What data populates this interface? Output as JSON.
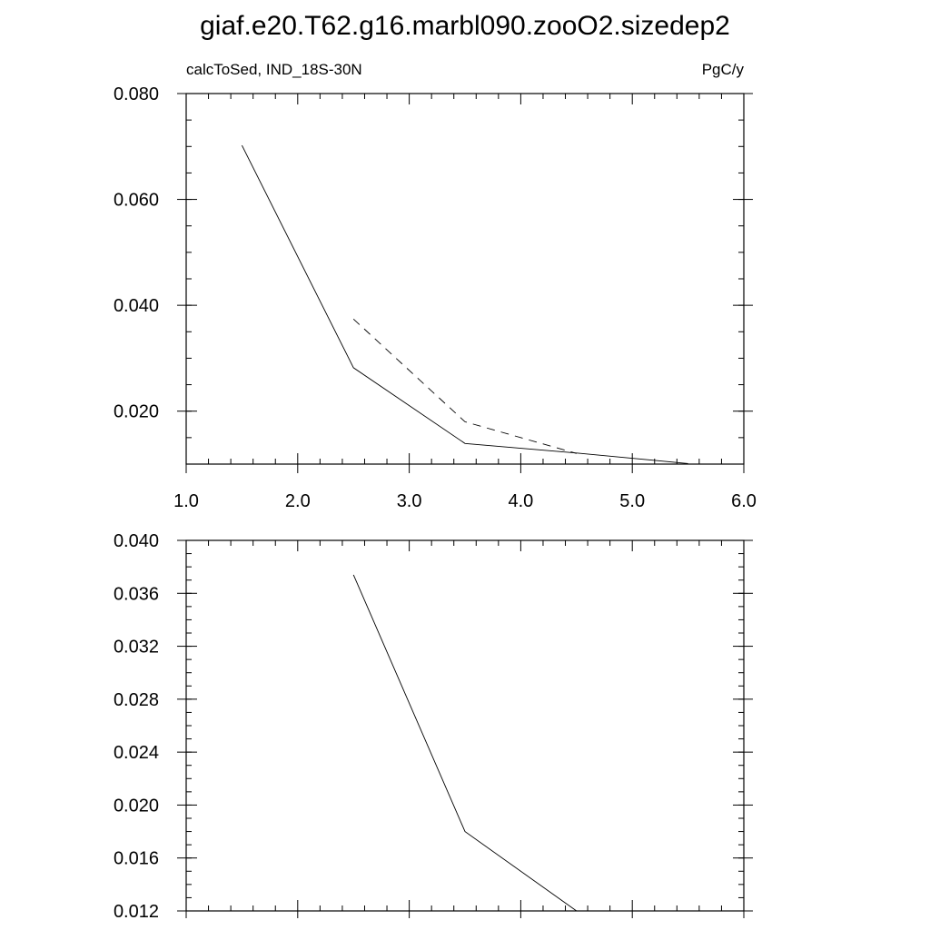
{
  "title": "giaf.e20.T62.g16.marbl090.zooO2.sizedep2",
  "chart_data": [
    {
      "type": "line",
      "left_label": "calcToSed, IND_18S-30N",
      "right_label": "PgC/y",
      "xlim": [
        1.0,
        6.0
      ],
      "ylim": [
        0.01,
        0.08
      ],
      "xticks": [
        "1.0",
        "2.0",
        "3.0",
        "4.0",
        "5.0",
        "6.0"
      ],
      "yticks": [
        "0.020",
        "0.040",
        "0.060",
        "0.080"
      ],
      "grid": false,
      "series": [
        {
          "style": "solid",
          "x": [
            1.5,
            2.5,
            3.5,
            4.5,
            5.5
          ],
          "y": [
            0.0702,
            0.0282,
            0.0139,
            0.0121,
            0.0101
          ]
        },
        {
          "style": "dashed",
          "x": [
            2.5,
            3.5,
            4.5
          ],
          "y": [
            0.0374,
            0.018,
            0.012
          ]
        }
      ]
    },
    {
      "type": "line",
      "xlim": [
        1.0,
        6.0
      ],
      "ylim": [
        0.012,
        0.04
      ],
      "yticks": [
        "0.012",
        "0.016",
        "0.020",
        "0.024",
        "0.028",
        "0.032",
        "0.036",
        "0.040"
      ],
      "grid": false,
      "series": [
        {
          "style": "solid",
          "x": [
            2.5,
            3.5,
            4.5
          ],
          "y": [
            0.0374,
            0.018,
            0.012
          ]
        }
      ]
    }
  ]
}
